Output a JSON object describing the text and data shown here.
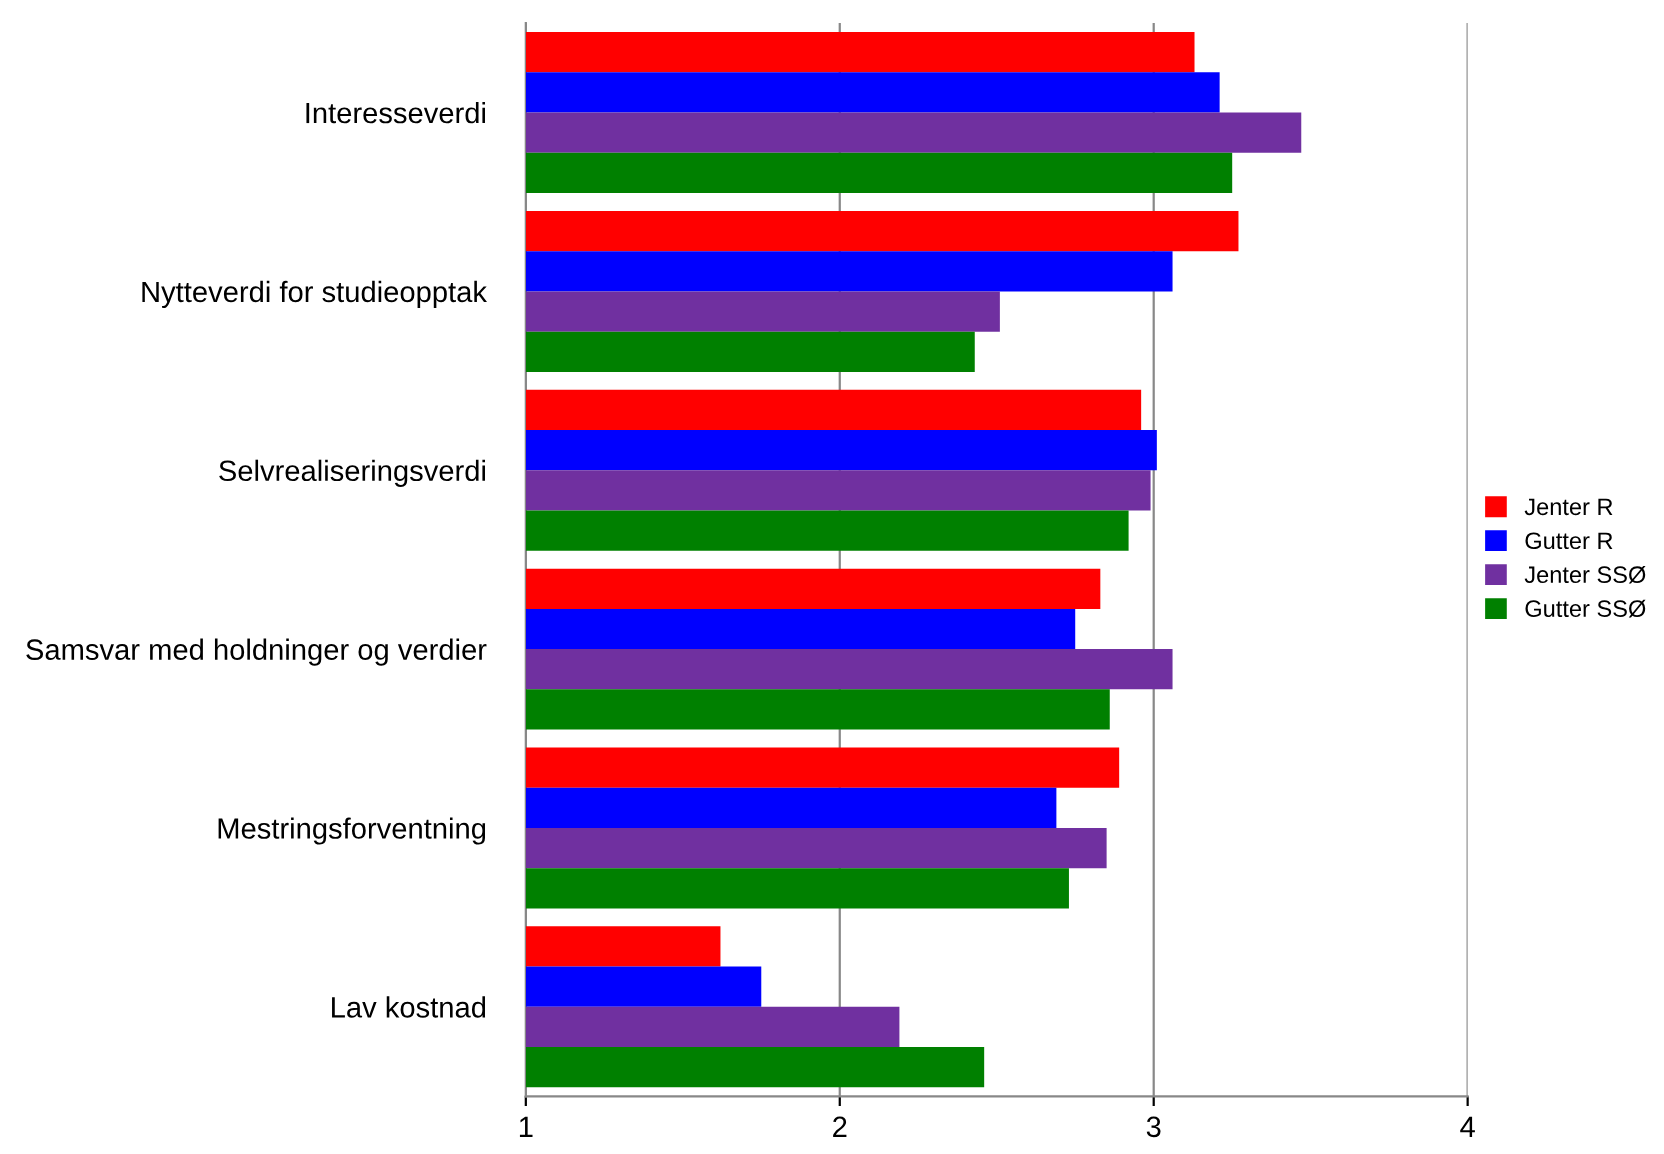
{
  "chart_data": {
    "type": "bar",
    "orientation": "horizontal",
    "categories": [
      "Interesseverdi",
      "Nytteverdi for studieopptak",
      "Selvrealiseringsverdi",
      "Samsvar med holdninger og verdier",
      "Mestringsforventning",
      "Lav kostnad"
    ],
    "series": [
      {
        "name": "Jenter R",
        "color": "#ff0000",
        "values": [
          3.13,
          3.27,
          2.96,
          2.83,
          2.89,
          1.62
        ]
      },
      {
        "name": "Gutter R",
        "color": "#0000ff",
        "values": [
          3.21,
          3.06,
          3.01,
          2.75,
          2.69,
          1.75
        ]
      },
      {
        "name": "Jenter SSØ",
        "color": "#7030a0",
        "values": [
          3.47,
          2.51,
          2.99,
          3.06,
          2.85,
          2.19
        ]
      },
      {
        "name": "Gutter SSØ",
        "color": "#008000",
        "values": [
          3.25,
          2.43,
          2.92,
          2.86,
          2.73,
          2.46
        ]
      }
    ],
    "xlim": [
      1,
      4
    ],
    "xticks": [
      1,
      2,
      3,
      4
    ],
    "grid": "x",
    "legend": "right"
  }
}
